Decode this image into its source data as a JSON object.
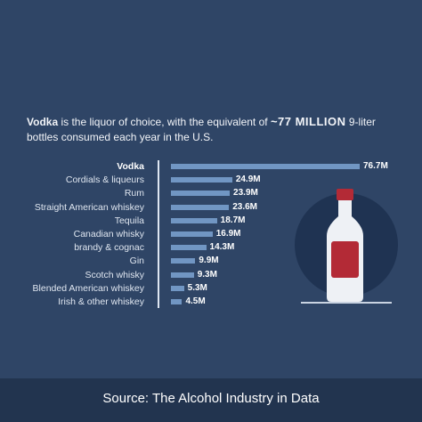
{
  "intro": {
    "brand": "Vodka",
    "text1": " is the liquor of choice, with the equivalent of ",
    "highlight": "~77 MILLION",
    "text2": " 9-liter bottles consumed each year in the U.S."
  },
  "chart_data": {
    "type": "bar",
    "orientation": "horizontal",
    "categories": [
      "Vodka",
      "Cordials & liqueurs",
      "Rum",
      "Straight American whiskey",
      "Tequila",
      "Canadian whisky",
      "brandy & cognac",
      "Gin",
      "Scotch whisky",
      "Blended American whiskey",
      "Irish & other whiskey"
    ],
    "values": [
      76.7,
      24.9,
      23.9,
      23.6,
      18.7,
      16.9,
      14.3,
      9.9,
      9.3,
      5.3,
      4.5
    ],
    "value_labels": [
      "76.7M",
      "24.9M",
      "23.9M",
      "23.6M",
      "18.7M",
      "16.9M",
      "14.3M",
      "9.9M",
      "9.3M",
      "5.3M",
      "4.5M"
    ],
    "grid": false,
    "colors": {
      "bar": "#7196c3",
      "background": "#2f4566"
    }
  },
  "footer": {
    "source": "Source: The Alcohol Industry in Data"
  },
  "icons": {
    "illustration": "vodka-bottle-icon"
  }
}
